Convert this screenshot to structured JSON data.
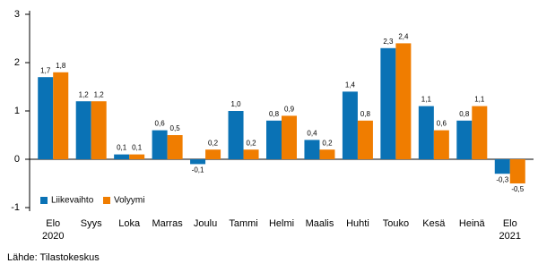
{
  "chart_data": {
    "type": "bar",
    "categories": [
      "Elo\n2020",
      "Syys",
      "Loka",
      "Marras",
      "Joulu",
      "Tammi",
      "Helmi",
      "Maalis",
      "Huhti",
      "Touko",
      "Kesä",
      "Heinä",
      "Elo\n2021"
    ],
    "series": [
      {
        "name": "Liikevaihto",
        "color": "#0a72b5",
        "values": [
          1.7,
          1.2,
          0.1,
          0.6,
          -0.1,
          1.0,
          0.8,
          0.4,
          1.4,
          2.3,
          1.1,
          0.8,
          -0.3
        ],
        "value_labels": [
          "1,7",
          "1,2",
          "0,1",
          "0,6",
          "-0,1",
          "1,0",
          "0,8",
          "0,4",
          "1,4",
          "2,3",
          "1,1",
          "0,8",
          "-0,3"
        ]
      },
      {
        "name": "Volyymi",
        "color": "#f07d00",
        "values": [
          1.8,
          1.2,
          0.1,
          0.5,
          0.2,
          0.2,
          0.9,
          0.2,
          0.8,
          2.4,
          0.6,
          1.1,
          -0.5
        ],
        "value_labels": [
          "1,8",
          "1,2",
          "0,1",
          "0,5",
          "0,2",
          "0,2",
          "0,9",
          "0,2",
          "0,8",
          "2,4",
          "0,6",
          "1,1",
          "-0,5"
        ]
      }
    ],
    "ylim": [
      -1,
      3
    ],
    "yticks": [
      -1,
      0,
      1,
      2,
      3
    ],
    "legend": "lower-left",
    "source": "Lähde: Tilastokeskus"
  }
}
